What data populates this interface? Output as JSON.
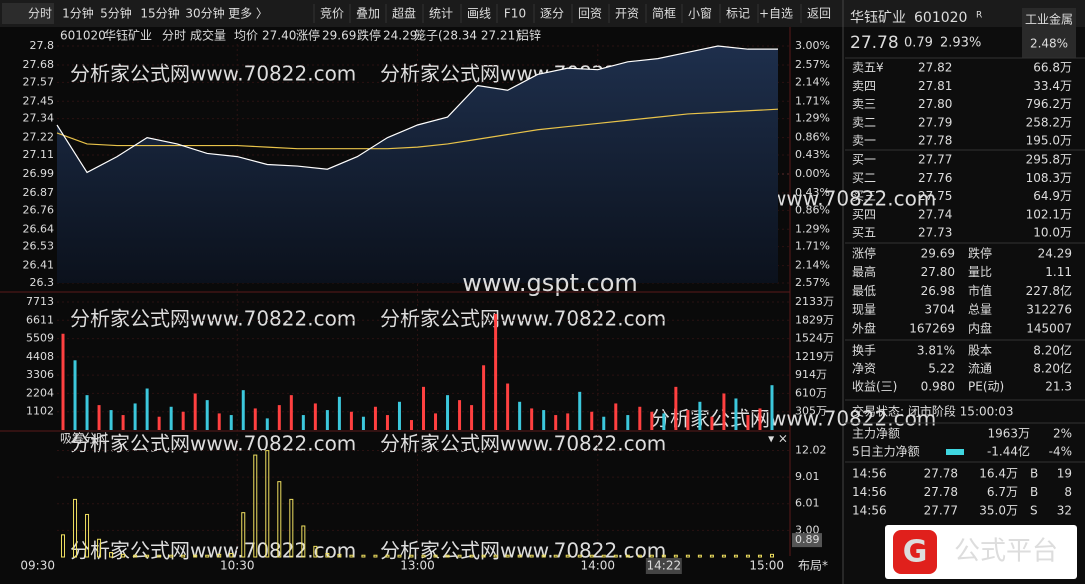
{
  "toolbar": {
    "left": [
      "分时",
      "1分钟",
      "5分钟",
      "15分钟",
      "30分钟",
      "更多 〉"
    ],
    "right": [
      "竞价",
      "叠加",
      "超盘",
      "统计",
      "画线",
      "F10",
      "逐分",
      "回资",
      "开资",
      "简框",
      "小窗",
      "标记",
      "+自选",
      "返回"
    ]
  },
  "chart_header": {
    "items": [
      "601020",
      "华钰矿业",
      "分时",
      "成交量",
      "均价",
      "27.40",
      "涨停",
      "29.69",
      "跌停",
      "24.29",
      "笼子(28.34 27.21)",
      "铝锌"
    ],
    "colors": [
      "#dddddd",
      "#dddddd",
      "#ffffff",
      "#e8c060",
      "#dddddd",
      "#ff4d4d",
      "#dddddd",
      "#ff4d4d",
      "#dddddd",
      "#3fd6e0",
      "#dddddd",
      "#e8c060"
    ]
  },
  "price_chart": {
    "prev_close": 26.99,
    "ylim": [
      26.3,
      27.8
    ],
    "yticks": [
      27.8,
      27.68,
      27.57,
      27.45,
      27.34,
      27.22,
      27.11,
      26.99,
      26.87,
      26.76,
      26.64,
      26.53,
      26.41,
      26.3
    ],
    "pct_labels": [
      "3.00%",
      "2.57%",
      "2.14%",
      "1.71%",
      "1.29%",
      "0.86%",
      "0.43%",
      "0.00%",
      "0.43%",
      "0.86%",
      "1.29%",
      "1.71%",
      "2.14%",
      "2.57%"
    ],
    "minutes": [
      0,
      10,
      20,
      30,
      40,
      50,
      60,
      70,
      80,
      90,
      100,
      110,
      120,
      130,
      140,
      150,
      160,
      170,
      180,
      190,
      200,
      210,
      220,
      230,
      240
    ],
    "price": [
      27.3,
      27.0,
      27.1,
      27.22,
      27.18,
      27.12,
      27.1,
      27.05,
      27.04,
      27.02,
      27.1,
      27.22,
      27.3,
      27.35,
      27.55,
      27.52,
      27.62,
      27.66,
      27.65,
      27.7,
      27.72,
      27.76,
      27.8,
      27.78,
      27.78
    ],
    "avg": [
      27.25,
      27.18,
      27.17,
      27.17,
      27.17,
      27.17,
      27.17,
      27.16,
      27.15,
      27.15,
      27.15,
      27.15,
      27.16,
      27.18,
      27.21,
      27.24,
      27.27,
      27.29,
      27.31,
      27.33,
      27.35,
      27.37,
      27.38,
      27.39,
      27.4
    ],
    "xlim": [
      0,
      240
    ],
    "price_color": "#ffffff",
    "avg_color": "#e8c34a"
  },
  "volume": {
    "ylim": [
      0,
      7713
    ],
    "yticks": [
      7713,
      6611,
      5509,
      4408,
      3306,
      2204,
      1102
    ],
    "right_labels": [
      "2133万",
      "1829万",
      "1524万",
      "1219万",
      "914万",
      "610万",
      "305万"
    ],
    "interval_minutes": 4,
    "up_color": "#ff4040",
    "down_color": "#3cc8dc",
    "values": [
      5800,
      4200,
      2100,
      1500,
      1200,
      900,
      1600,
      2500,
      800,
      1400,
      1100,
      2200,
      1800,
      1000,
      900,
      2400,
      1300,
      700,
      1500,
      2100,
      900,
      1600,
      1200,
      2000,
      1100,
      800,
      1400,
      900,
      1700,
      600,
      2600,
      1000,
      2100,
      1800,
      1500,
      3900,
      7000,
      2800,
      1700,
      1300,
      1200,
      900,
      1000,
      2300,
      1100,
      800,
      1600,
      900,
      1400,
      1100,
      1000,
      2600,
      1200,
      1700,
      800,
      2200,
      1900,
      900,
      1300,
      2700
    ],
    "up": [
      1,
      0,
      0,
      1,
      0,
      1,
      0,
      0,
      1,
      0,
      1,
      1,
      0,
      1,
      0,
      0,
      1,
      0,
      1,
      1,
      0,
      1,
      0,
      0,
      1,
      0,
      1,
      1,
      0,
      1,
      1,
      1,
      0,
      1,
      1,
      1,
      1,
      1,
      0,
      1,
      0,
      1,
      1,
      0,
      1,
      0,
      1,
      0,
      1,
      1,
      0,
      1,
      1,
      0,
      1,
      1,
      0,
      1,
      1,
      0
    ]
  },
  "indicator": {
    "title": "吸筹分时",
    "ylim": [
      0,
      13.2
    ],
    "yticks": [
      12.02,
      9.01,
      6.01,
      {
        "value": 3,
        "label": "3.00"
      }
    ],
    "current": 0.89,
    "interval_minutes": 4,
    "color": "#f0e060",
    "values": [
      2.5,
      6.5,
      4.8,
      2.0,
      0.5,
      0.3,
      0.2,
      0.2,
      0.2,
      0.2,
      0.2,
      0.2,
      0.2,
      0.3,
      0.4,
      5.0,
      11.5,
      12.0,
      8.5,
      6.5,
      3.5,
      1.2,
      0.4,
      0.3,
      0.2,
      0.2,
      0.2,
      0.2,
      0.2,
      0.2,
      0.2,
      0.2,
      0.2,
      0.2,
      0.2,
      0.2,
      0.2,
      0.2,
      0.2,
      0.2,
      0.2,
      0.2,
      0.2,
      0.2,
      0.2,
      0.2,
      0.2,
      0.2,
      0.2,
      0.2,
      0.2,
      0.2,
      0.2,
      0.2,
      0.2,
      0.2,
      0.2,
      0.2,
      0.2,
      0.3
    ]
  },
  "x_axis": {
    "labels": [
      {
        "minute": 0,
        "label": "09:30"
      },
      {
        "minute": 60,
        "label": "10:30"
      },
      {
        "minute": 120,
        "label": "13:00"
      },
      {
        "minute": 180,
        "label": "14:00"
      },
      {
        "minute": 240,
        "label": "15:00"
      }
    ],
    "cursor": {
      "minute": 202,
      "label": "14:22"
    },
    "layout_button": "布局*"
  },
  "quote": {
    "name": "华钰矿业",
    "code": "601020",
    "badge": "R",
    "sector": "工业金属",
    "sector_change": "2.48%",
    "price": "27.78",
    "change": "0.79",
    "change_pct": "2.93%"
  },
  "order_book": {
    "asks": [
      [
        "卖五¥",
        "27.82",
        "66.8万"
      ],
      [
        "卖四",
        "27.81",
        "33.4万"
      ],
      [
        "卖三",
        "27.80",
        "796.2万"
      ],
      [
        "卖二",
        "27.79",
        "258.2万"
      ],
      [
        "卖一",
        "27.78",
        "195.0万"
      ]
    ],
    "bids": [
      [
        "买一",
        "27.77",
        "295.8万"
      ],
      [
        "买二",
        "27.76",
        "108.3万"
      ],
      [
        "买三",
        "27.75",
        "64.9万"
      ],
      [
        "买四",
        "27.74",
        "102.1万"
      ],
      [
        "买五",
        "27.73",
        "10.0万"
      ]
    ]
  },
  "stats": {
    "rows": [
      [
        "涨停",
        "29.69",
        "跌停",
        "24.29"
      ],
      [
        "最高",
        "27.80",
        "量比",
        "1.11"
      ],
      [
        "最低",
        "26.98",
        "市值",
        "227.8亿"
      ],
      [
        "现量",
        "3704",
        "总量",
        "312276"
      ],
      [
        "外盘",
        "167269",
        "内盘",
        "145007"
      ]
    ],
    "colors": [
      [
        "#ff4d4d",
        "#3fd6e0"
      ],
      [
        "#ff4d4d",
        "#ff4d4d"
      ],
      [
        "#3fd6e0",
        "#dddddd"
      ],
      [
        "#b070ff",
        "#dddddd"
      ],
      [
        "#ff4d4d",
        "#3fd6e0"
      ]
    ]
  },
  "fundamentals": [
    [
      "换手",
      "3.81%",
      "股本",
      "8.20亿"
    ],
    [
      "净资",
      "5.22",
      "流通",
      "8.20亿"
    ],
    [
      "收益(三)",
      "0.980",
      "PE(动)",
      "21.3"
    ]
  ],
  "status": "交易状态: 闭市阶段 15:00:03",
  "fund_flow": [
    {
      "label": "主力净额",
      "value": "1963万",
      "pct": "2%",
      "color": "#ff4d4d"
    },
    {
      "label": "5日主力净额",
      "value": "-1.44亿",
      "pct": "-4%",
      "color": "#3fd6e0"
    }
  ],
  "trades": [
    [
      "14:56",
      "27.78",
      "16.4万",
      "B",
      "19"
    ],
    [
      "14:56",
      "27.78",
      "6.7万",
      "B",
      "8"
    ],
    [
      "14:56",
      "27.77",
      "35.0万",
      "S",
      "32"
    ]
  ],
  "logo": "公式平台",
  "watermarks": [
    "www.gspt.com",
    "分析家公式网www.70822.com"
  ]
}
